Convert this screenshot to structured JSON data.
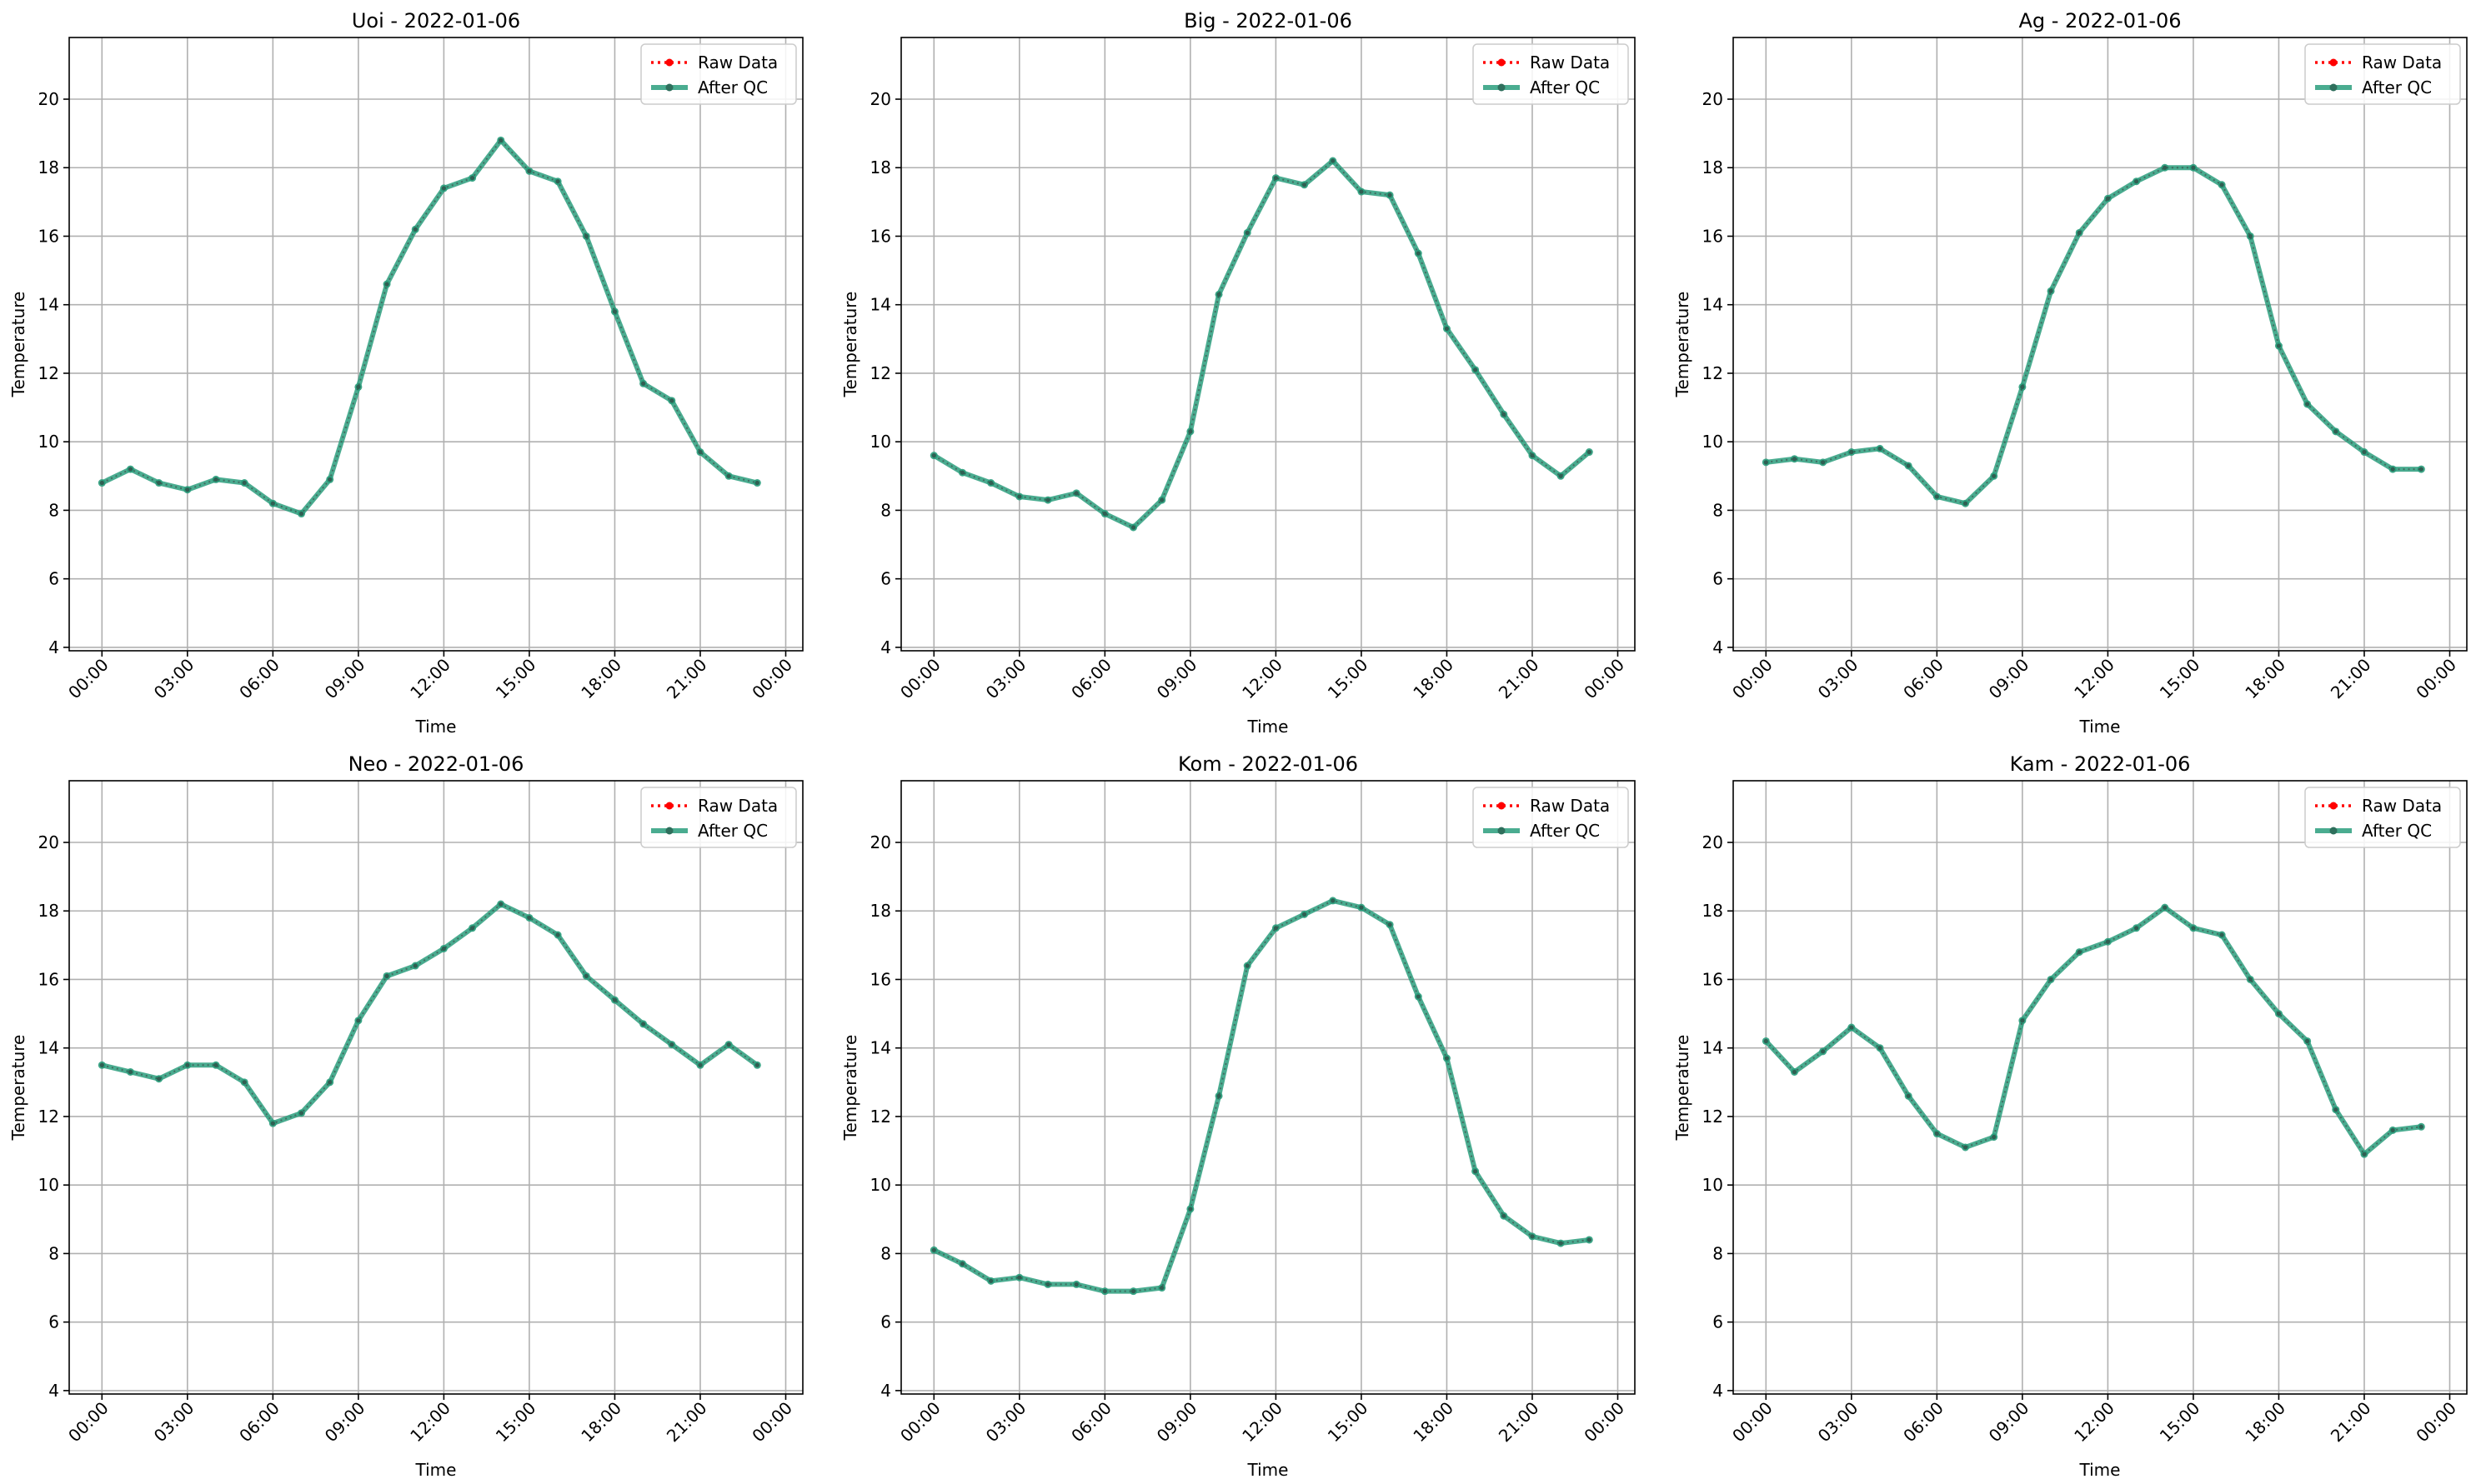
{
  "chart_data": [
    {
      "type": "line",
      "title": "Uoi - 2022-01-06",
      "xlabel": "Time",
      "ylabel": "Temperature",
      "ylim": [
        3.9,
        21.8
      ],
      "yticks": [
        4,
        6,
        8,
        10,
        12,
        14,
        16,
        18,
        20
      ],
      "xticks": [
        "00:00",
        "03:00",
        "06:00",
        "09:00",
        "12:00",
        "15:00",
        "18:00",
        "21:00",
        "00:00"
      ],
      "x_hours": [
        0,
        1,
        2,
        3,
        4,
        5,
        6,
        7,
        8,
        9,
        10,
        11,
        12,
        13,
        14,
        15,
        16,
        17,
        18,
        19,
        20,
        21,
        22,
        23
      ],
      "series": [
        {
          "name": "Raw Data",
          "values": [
            8.8,
            9.2,
            8.8,
            8.6,
            8.9,
            8.8,
            8.2,
            7.9,
            8.9,
            11.6,
            14.6,
            16.2,
            17.4,
            17.7,
            18.8,
            17.9,
            17.6,
            16.0,
            13.8,
            11.7,
            11.2,
            9.7,
            9.0,
            8.8
          ]
        },
        {
          "name": "After QC",
          "values": [
            8.8,
            9.2,
            8.8,
            8.6,
            8.9,
            8.8,
            8.2,
            7.9,
            8.9,
            11.6,
            14.6,
            16.2,
            17.4,
            17.7,
            18.8,
            17.9,
            17.6,
            16.0,
            13.8,
            11.7,
            11.2,
            9.7,
            9.0,
            8.8
          ]
        }
      ],
      "grid": true,
      "legend": "top-right"
    },
    {
      "type": "line",
      "title": "Big - 2022-01-06",
      "xlabel": "Time",
      "ylabel": "Temperature",
      "ylim": [
        3.9,
        21.8
      ],
      "yticks": [
        4,
        6,
        8,
        10,
        12,
        14,
        16,
        18,
        20
      ],
      "xticks": [
        "00:00",
        "03:00",
        "06:00",
        "09:00",
        "12:00",
        "15:00",
        "18:00",
        "21:00",
        "00:00"
      ],
      "x_hours": [
        0,
        1,
        2,
        3,
        4,
        5,
        6,
        7,
        8,
        9,
        10,
        11,
        12,
        13,
        14,
        15,
        16,
        17,
        18,
        19,
        20,
        21,
        22,
        23
      ],
      "series": [
        {
          "name": "Raw Data",
          "values": [
            9.6,
            9.1,
            8.8,
            8.4,
            8.3,
            8.5,
            7.9,
            7.5,
            8.3,
            10.3,
            14.3,
            16.1,
            17.7,
            17.5,
            18.2,
            17.3,
            17.2,
            15.5,
            13.3,
            12.1,
            10.8,
            9.6,
            9.0,
            9.7
          ]
        },
        {
          "name": "After QC",
          "values": [
            9.6,
            9.1,
            8.8,
            8.4,
            8.3,
            8.5,
            7.9,
            7.5,
            8.3,
            10.3,
            14.3,
            16.1,
            17.7,
            17.5,
            18.2,
            17.3,
            17.2,
            15.5,
            13.3,
            12.1,
            10.8,
            9.6,
            9.0,
            9.7
          ]
        }
      ],
      "grid": true,
      "legend": "top-right"
    },
    {
      "type": "line",
      "title": "Ag - 2022-01-06",
      "xlabel": "Time",
      "ylabel": "Temperature",
      "ylim": [
        3.9,
        21.8
      ],
      "yticks": [
        4,
        6,
        8,
        10,
        12,
        14,
        16,
        18,
        20
      ],
      "xticks": [
        "00:00",
        "03:00",
        "06:00",
        "09:00",
        "12:00",
        "15:00",
        "18:00",
        "21:00",
        "00:00"
      ],
      "x_hours": [
        0,
        1,
        2,
        3,
        4,
        5,
        6,
        7,
        8,
        9,
        10,
        11,
        12,
        13,
        14,
        15,
        16,
        17,
        18,
        19,
        20,
        21,
        22,
        23
      ],
      "series": [
        {
          "name": "Raw Data",
          "values": [
            9.4,
            9.5,
            9.4,
            9.7,
            9.8,
            9.3,
            8.4,
            8.2,
            9.0,
            11.6,
            14.4,
            16.1,
            17.1,
            17.6,
            18.0,
            18.0,
            17.5,
            16.0,
            12.8,
            11.1,
            10.3,
            9.7,
            9.2,
            9.2
          ]
        },
        {
          "name": "After QC",
          "values": [
            9.4,
            9.5,
            9.4,
            9.7,
            9.8,
            9.3,
            8.4,
            8.2,
            9.0,
            11.6,
            14.4,
            16.1,
            17.1,
            17.6,
            18.0,
            18.0,
            17.5,
            16.0,
            12.8,
            11.1,
            10.3,
            9.7,
            9.2,
            9.2
          ]
        }
      ],
      "grid": true,
      "legend": "top-right"
    },
    {
      "type": "line",
      "title": "Neo - 2022-01-06",
      "xlabel": "Time",
      "ylabel": "Temperature",
      "ylim": [
        3.9,
        21.8
      ],
      "yticks": [
        4,
        6,
        8,
        10,
        12,
        14,
        16,
        18,
        20
      ],
      "xticks": [
        "00:00",
        "03:00",
        "06:00",
        "09:00",
        "12:00",
        "15:00",
        "18:00",
        "21:00",
        "00:00"
      ],
      "x_hours": [
        0,
        1,
        2,
        3,
        4,
        5,
        6,
        7,
        8,
        9,
        10,
        11,
        12,
        13,
        14,
        15,
        16,
        17,
        18,
        19,
        20,
        21,
        22,
        23
      ],
      "series": [
        {
          "name": "Raw Data",
          "values": [
            13.5,
            13.3,
            13.1,
            13.5,
            13.5,
            13.0,
            11.8,
            12.1,
            13.0,
            14.8,
            16.1,
            16.4,
            16.9,
            17.5,
            18.2,
            17.8,
            17.3,
            16.1,
            15.4,
            14.7,
            14.1,
            13.5,
            14.1,
            13.5
          ]
        },
        {
          "name": "After QC",
          "values": [
            13.5,
            13.3,
            13.1,
            13.5,
            13.5,
            13.0,
            11.8,
            12.1,
            13.0,
            14.8,
            16.1,
            16.4,
            16.9,
            17.5,
            18.2,
            17.8,
            17.3,
            16.1,
            15.4,
            14.7,
            14.1,
            13.5,
            14.1,
            13.5
          ]
        }
      ],
      "grid": true,
      "legend": "top-right"
    },
    {
      "type": "line",
      "title": "Kom - 2022-01-06",
      "xlabel": "Time",
      "ylabel": "Temperature",
      "ylim": [
        3.9,
        21.8
      ],
      "yticks": [
        4,
        6,
        8,
        10,
        12,
        14,
        16,
        18,
        20
      ],
      "xticks": [
        "00:00",
        "03:00",
        "06:00",
        "09:00",
        "12:00",
        "15:00",
        "18:00",
        "21:00",
        "00:00"
      ],
      "x_hours": [
        0,
        1,
        2,
        3,
        4,
        5,
        6,
        7,
        8,
        9,
        10,
        11,
        12,
        13,
        14,
        15,
        16,
        17,
        18,
        19,
        20,
        21,
        22,
        23
      ],
      "series": [
        {
          "name": "Raw Data",
          "values": [
            8.1,
            7.7,
            7.2,
            7.3,
            7.1,
            7.1,
            6.9,
            6.9,
            7.0,
            9.3,
            12.6,
            16.4,
            17.5,
            17.9,
            18.3,
            18.1,
            17.6,
            15.5,
            13.7,
            10.4,
            9.1,
            8.5,
            8.3,
            8.4
          ]
        },
        {
          "name": "After QC",
          "values": [
            8.1,
            7.7,
            7.2,
            7.3,
            7.1,
            7.1,
            6.9,
            6.9,
            7.0,
            9.3,
            12.6,
            16.4,
            17.5,
            17.9,
            18.3,
            18.1,
            17.6,
            15.5,
            13.7,
            10.4,
            9.1,
            8.5,
            8.3,
            8.4
          ]
        }
      ],
      "grid": true,
      "legend": "top-right"
    },
    {
      "type": "line",
      "title": "Kam - 2022-01-06",
      "xlabel": "Time",
      "ylabel": "Temperature",
      "ylim": [
        3.9,
        21.8
      ],
      "yticks": [
        4,
        6,
        8,
        10,
        12,
        14,
        16,
        18,
        20
      ],
      "xticks": [
        "00:00",
        "03:00",
        "06:00",
        "09:00",
        "12:00",
        "15:00",
        "18:00",
        "21:00",
        "00:00"
      ],
      "x_hours": [
        0,
        1,
        2,
        3,
        4,
        5,
        6,
        7,
        8,
        9,
        10,
        11,
        12,
        13,
        14,
        15,
        16,
        17,
        18,
        19,
        20,
        21,
        22,
        23
      ],
      "series": [
        {
          "name": "Raw Data",
          "values": [
            14.2,
            13.3,
            13.9,
            14.6,
            14.0,
            12.6,
            11.5,
            11.1,
            11.4,
            14.8,
            16.0,
            16.8,
            17.1,
            17.5,
            18.1,
            17.5,
            17.3,
            16.0,
            15.0,
            14.2,
            12.2,
            10.9,
            11.6,
            11.7
          ]
        },
        {
          "name": "After QC",
          "values": [
            14.2,
            13.3,
            13.9,
            14.6,
            14.0,
            12.6,
            11.5,
            11.1,
            11.4,
            14.8,
            16.0,
            16.8,
            17.1,
            17.5,
            18.1,
            17.5,
            17.3,
            16.0,
            15.0,
            14.2,
            12.2,
            10.9,
            11.6,
            11.7
          ]
        }
      ],
      "grid": true,
      "legend": "top-right"
    }
  ],
  "colors": {
    "raw": "#ff0000",
    "qc": "#2a9d7c",
    "grid": "#b0b0b0",
    "axis": "#000000"
  }
}
